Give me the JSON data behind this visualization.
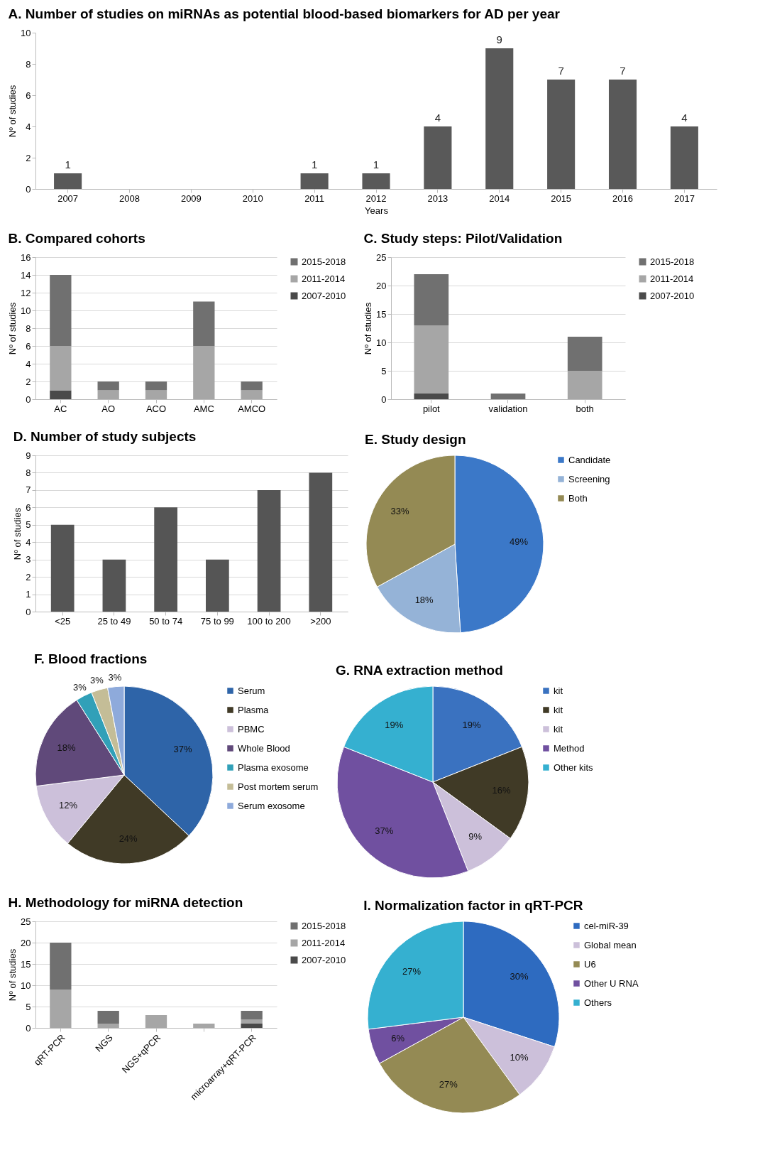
{
  "chart_data": [
    {
      "type": "bar",
      "title": "A. Number of studies on miRNAs as potential blood-based biomarkers for AD per year",
      "categories": [
        "2007",
        "2008",
        "2009",
        "2010",
        "2011",
        "2012",
        "2013",
        "2014",
        "2015",
        "2016",
        "2017"
      ],
      "values": [
        1,
        0,
        0,
        0,
        1,
        1,
        4,
        9,
        7,
        7,
        4
      ],
      "value_labels": [
        "1",
        null,
        null,
        null,
        "1",
        "1",
        "4",
        "9",
        "7",
        "7",
        "4"
      ],
      "color": "#595959",
      "xlabel": "Years",
      "ylabel": "Nº of studies",
      "ylim": [
        0,
        10
      ],
      "yticks": [
        0,
        2,
        4,
        6,
        8,
        10
      ],
      "grid": false
    },
    {
      "type": "bar",
      "title": "B. Compared cohorts",
      "categories": [
        "AC",
        "AO",
        "ACO",
        "AMC",
        "AMCO"
      ],
      "stacked": true,
      "ylabel": "Nº of studies",
      "ylim": [
        0,
        16
      ],
      "yticks": [
        0,
        2,
        4,
        6,
        8,
        10,
        12,
        14,
        16
      ],
      "grid": "y",
      "legend": "right",
      "series": [
        {
          "name": "2007-2010",
          "color": "#4a4a4a",
          "values": [
            1,
            0,
            0,
            0,
            0
          ]
        },
        {
          "name": "2011-2014",
          "color": "#a6a6a6",
          "values": [
            5,
            1,
            1,
            6,
            1
          ]
        },
        {
          "name": "2015-2018",
          "color": "#707070",
          "values": [
            8,
            1,
            1,
            5,
            1
          ]
        }
      ]
    },
    {
      "type": "bar",
      "title": "C. Study steps: Pilot/Validation",
      "categories": [
        "pilot",
        "validation",
        "both"
      ],
      "stacked": true,
      "ylabel": "Nº of studies",
      "ylim": [
        0,
        25
      ],
      "yticks": [
        0,
        5,
        10,
        15,
        20,
        25
      ],
      "grid": "y",
      "legend": "right",
      "series": [
        {
          "name": "2007-2010",
          "color": "#4a4a4a",
          "values": [
            1,
            0,
            0
          ]
        },
        {
          "name": "2011-2014",
          "color": "#a6a6a6",
          "values": [
            12,
            0,
            5
          ]
        },
        {
          "name": "2015-2018",
          "color": "#707070",
          "values": [
            9,
            1,
            6
          ]
        }
      ]
    },
    {
      "type": "bar",
      "title": "D. Number of study subjects",
      "categories": [
        "<25",
        "25 to 49",
        "50 to 74",
        "75 to 99",
        "100 to 200",
        ">200"
      ],
      "values": [
        5,
        3,
        6,
        3,
        7,
        8
      ],
      "color": "#555555",
      "ylabel": "Nº of studies",
      "ylim": [
        0,
        9
      ],
      "yticks": [
        0,
        1,
        2,
        3,
        4,
        5,
        6,
        7,
        8,
        9
      ],
      "grid": "y"
    },
    {
      "type": "pie",
      "title": "E. Study design",
      "categories": [
        "Candidate",
        "Screening",
        "Both"
      ],
      "values": [
        49,
        18,
        33
      ],
      "value_labels": [
        "49%",
        "18%",
        "33%"
      ],
      "colors": [
        "#3b78c8",
        "#95b3d7",
        "#948a54"
      ],
      "legend": "right"
    },
    {
      "type": "pie",
      "title": "F. Blood fractions",
      "categories": [
        "Serum",
        "Plasma",
        "PBMC",
        "Whole Blood",
        "Plasma exosome",
        "Post mortem serum",
        "Serum exosome"
      ],
      "values": [
        37,
        24,
        12,
        18,
        3,
        3,
        3
      ],
      "value_labels": [
        "37%",
        "24%",
        "12%",
        "18%",
        "3%",
        "3%",
        "3%"
      ],
      "colors": [
        "#2e64a8",
        "#403a26",
        "#ccc0da",
        "#60497a",
        "#31a0b8",
        "#c4bd97",
        "#8eaadb"
      ],
      "legend": "right"
    },
    {
      "type": "pie",
      "title": "G. RNA extraction method",
      "categories": [
        "kit",
        "kit",
        "kit",
        "Method",
        "Other kits"
      ],
      "values": [
        19,
        16,
        9,
        37,
        19
      ],
      "value_labels": [
        "19%",
        "16%",
        "9%",
        "37%",
        "19%"
      ],
      "colors": [
        "#3a72c0",
        "#403a26",
        "#ccc0da",
        "#7050a0",
        "#35b0d0"
      ],
      "legend": "right"
    },
    {
      "type": "bar",
      "title": "H. Methodology for miRNA detection",
      "categories": [
        "qRT-PCR",
        "NGS",
        "NGS+qPCR",
        null,
        "microarray+qRT-PCR"
      ],
      "stacked": true,
      "ylabel": "Nº of studies",
      "ylim": [
        0,
        25
      ],
      "yticks": [
        0,
        5,
        10,
        15,
        20,
        25
      ],
      "grid": "y",
      "legend": "right",
      "series": [
        {
          "name": "2007-2010",
          "color": "#4a4a4a",
          "values": [
            0,
            0,
            0,
            0,
            1
          ]
        },
        {
          "name": "2011-2014",
          "color": "#a6a6a6",
          "values": [
            9,
            1,
            3,
            1,
            1
          ]
        },
        {
          "name": "2015-2018",
          "color": "#707070",
          "values": [
            11,
            3,
            0,
            0,
            2
          ]
        }
      ]
    },
    {
      "type": "pie",
      "title": "I. Normalization factor in qRT-PCR",
      "categories": [
        "cel-miR-39",
        "Global mean",
        "U6",
        "Other U RNA",
        "Others"
      ],
      "values": [
        30,
        10,
        27,
        6,
        27
      ],
      "value_labels": [
        "30%",
        "10%",
        "27%",
        "6%",
        "27%"
      ],
      "colors": [
        "#2e6bc0",
        "#ccc0da",
        "#948a54",
        "#7050a0",
        "#35b0d0"
      ],
      "legend": "right"
    }
  ]
}
